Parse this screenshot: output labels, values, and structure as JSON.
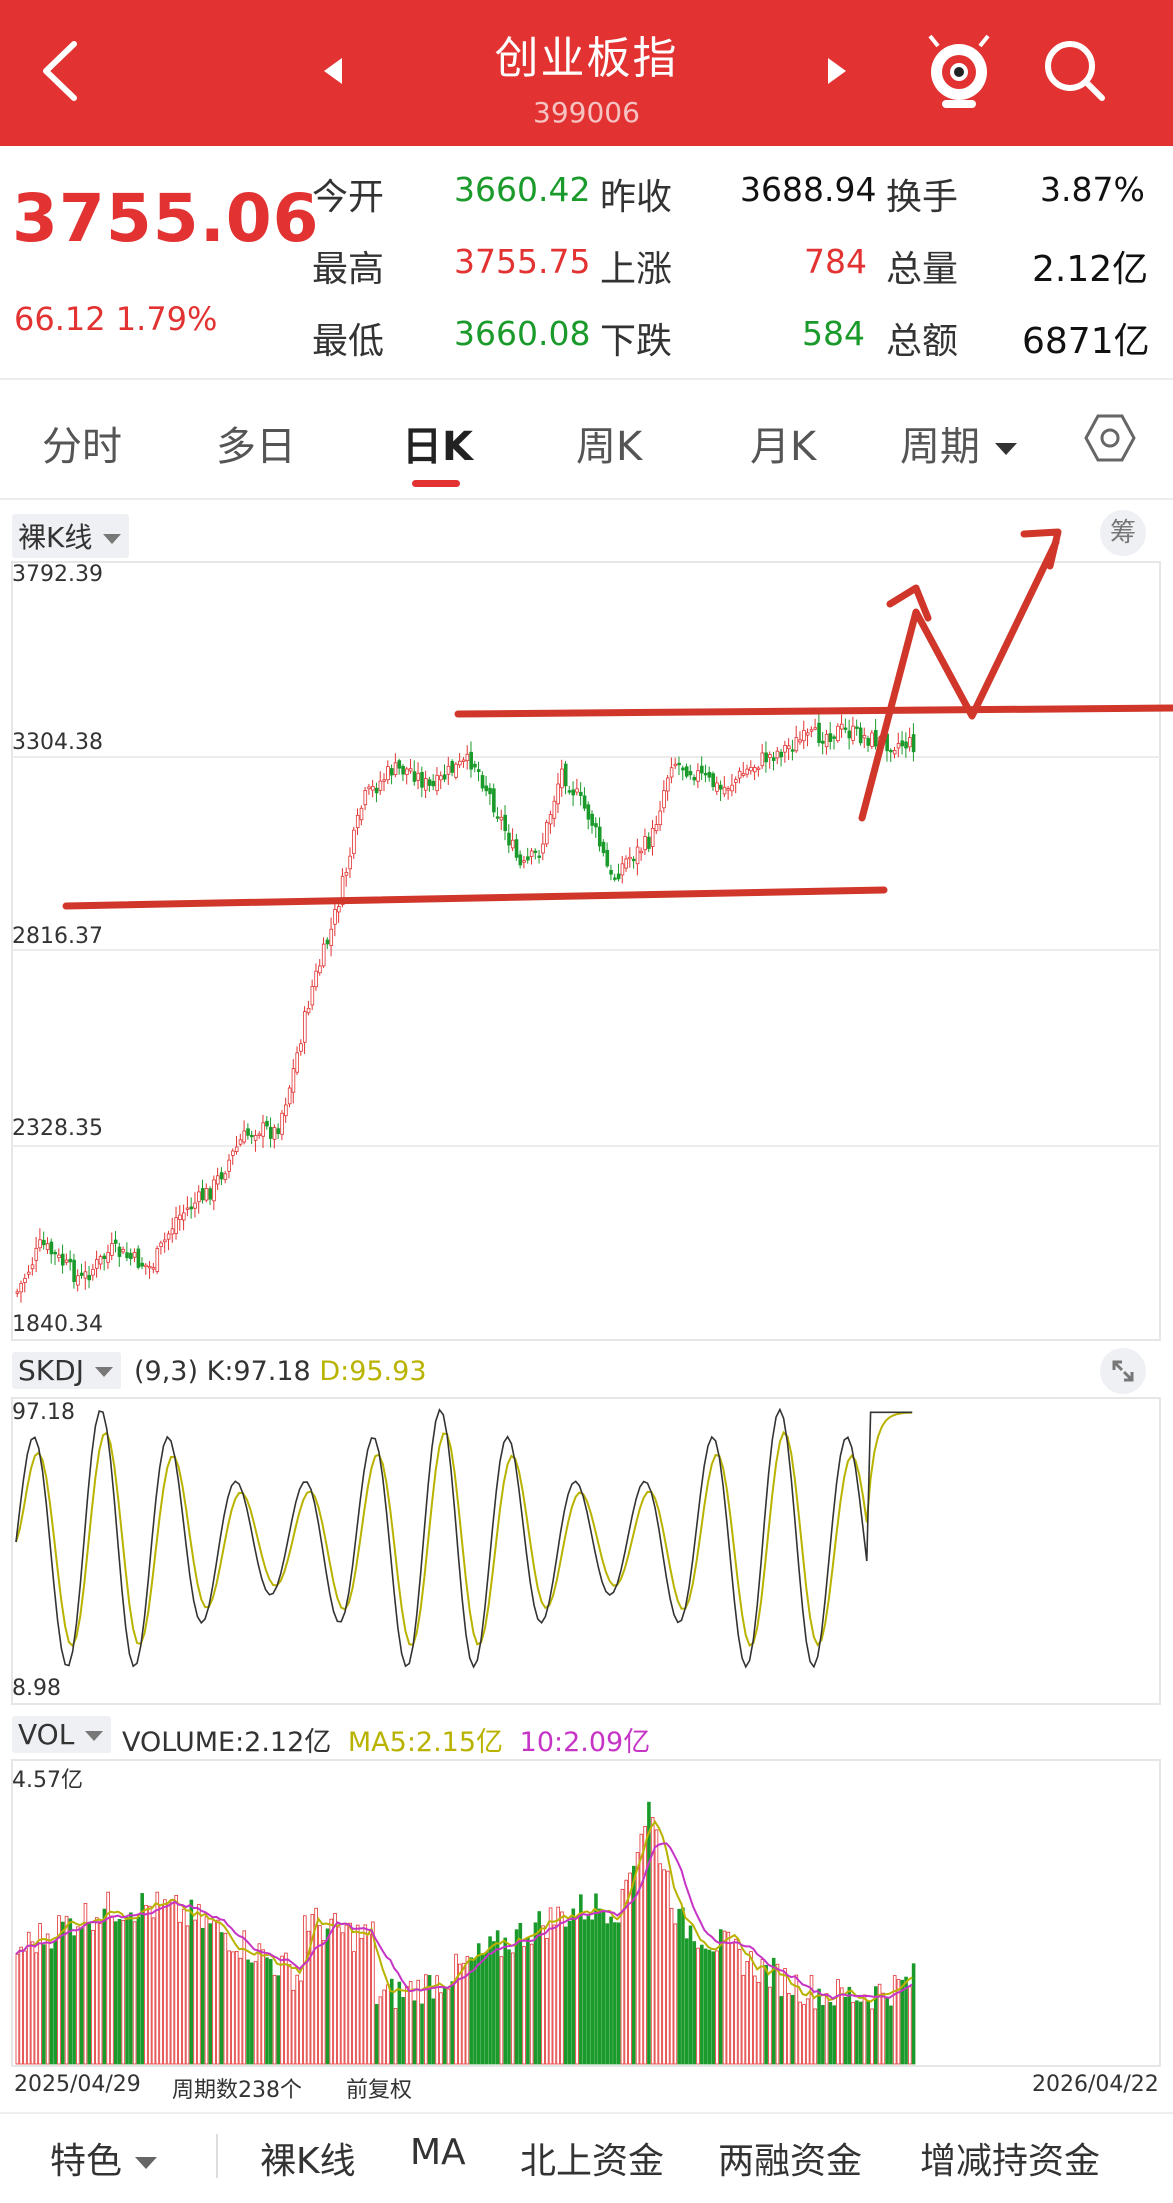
{
  "header": {
    "title": "创业板指",
    "code": "399006",
    "back_icon": "chevron-left-icon",
    "prev_icon": "triangle-left-icon",
    "next_icon": "triangle-right-icon",
    "mascot_icon": "mascot-icon",
    "search_icon": "search-icon"
  },
  "quote": {
    "price": "3755.06",
    "change": "66.12 1.79%",
    "rows": [
      {
        "l1": "今开",
        "v1": "3660.42",
        "l2": "昨收",
        "v2": "3688.94",
        "l3": "换手",
        "v3": "3.87%"
      },
      {
        "l1": "最高",
        "v1": "3755.75",
        "l2": "上涨",
        "v2": "784",
        "l3": "总量",
        "v3": "2.12亿"
      },
      {
        "l1": "最低",
        "v1": "3660.08",
        "l2": "下跌",
        "v2": "584",
        "l3": "总额",
        "v3": "6871亿"
      }
    ]
  },
  "tabs": {
    "items": [
      "分时",
      "多日",
      "日K",
      "周K",
      "月K",
      "周期"
    ],
    "active": "日K",
    "settings_icon": "hexagon-settings-icon"
  },
  "kline": {
    "mode_label": "裸K线",
    "chip_label": "筹",
    "y_labels": [
      "3792.39",
      "3304.38",
      "2816.37",
      "2328.35",
      "1840.34"
    ]
  },
  "kdj": {
    "label": "SKDJ",
    "params": "(9,3)",
    "k": "K:97.18",
    "d": "D:95.93",
    "y_top": "97.18",
    "y_bottom": "8.98"
  },
  "vol": {
    "label": "VOL",
    "volume": "VOLUME:2.12亿",
    "ma5": "MA5:2.15亿",
    "ma10": "10:2.09亿",
    "y_top": "4.57亿",
    "date_start": "2025/04/29",
    "period_count": "周期数238个",
    "adjust": "前复权",
    "date_end": "2026/04/22"
  },
  "bottom_bar": {
    "items": [
      "特色",
      "裸K线",
      "MA",
      "北上资金",
      "两融资金",
      "增减持资金"
    ],
    "active": "裸K线"
  },
  "colors": {
    "brand_red": "#e23232",
    "up": "#e23232",
    "down": "#1a9a2a",
    "kdj_d": "#b9b300",
    "ma10": "#c634c6",
    "annotation": "#d0362a"
  }
}
